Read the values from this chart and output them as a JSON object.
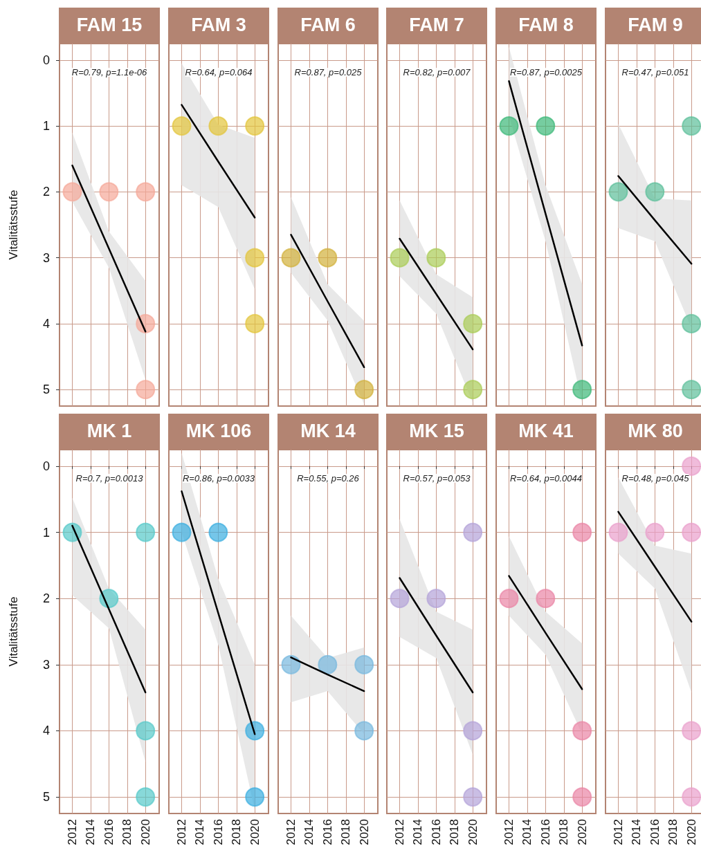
{
  "chart_data": [
    {
      "type": "scatter",
      "title": "FAM 15",
      "ylabel": "Vitalitätsstufe",
      "annotations": [
        "R=0.79, p=1.1e-06"
      ],
      "xlim": [
        2010.6,
        2021.5
      ],
      "xticks": [
        2012,
        2014,
        2016,
        2018,
        2020
      ],
      "ylim": [
        5.25,
        -0.25
      ],
      "yticks": [
        0,
        1,
        2,
        3,
        4,
        5
      ],
      "grid": true,
      "marker": "circle",
      "tick_labels": "y",
      "series": [
        {
          "color": "#f5a898",
          "x": [
            2012,
            2016,
            2020,
            2020,
            2020
          ],
          "values": [
            2,
            2,
            2,
            4,
            5
          ]
        },
        {
          "type": "line",
          "color": "#000000",
          "x": [
            2012,
            2016,
            2020
          ],
          "marker": "none",
          "values": [
            1.6,
            2.86,
            4.12
          ],
          "lower": [
            1.1,
            2.6,
            3.35
          ],
          "upper": [
            2.15,
            3.15,
            4.85
          ]
        }
      ]
    },
    {
      "type": "scatter",
      "title": "FAM 3",
      "annotations": [
        "R=0.64, p=0.064"
      ],
      "xlim": [
        2010.6,
        2021.5
      ],
      "xticks": [
        2012,
        2014,
        2016,
        2018,
        2020
      ],
      "ylim": [
        5.25,
        -0.25
      ],
      "yticks": [
        0,
        1,
        2,
        3,
        4,
        5
      ],
      "grid": true,
      "marker": "circle",
      "tick_labels": false,
      "series": [
        {
          "color": "#e3c53a",
          "x": [
            2012,
            2016,
            2020,
            2020,
            2020
          ],
          "values": [
            1,
            1,
            1,
            3,
            4
          ]
        },
        {
          "type": "line",
          "color": "#000000",
          "x": [
            2012,
            2016,
            2020
          ],
          "marker": "none",
          "values": [
            0.68,
            1.54,
            2.39
          ],
          "lower": [
            0.05,
            0.98,
            1.18
          ],
          "upper": [
            1.9,
            2.23,
            3.48
          ]
        }
      ]
    },
    {
      "type": "scatter",
      "title": "FAM 6",
      "annotations": [
        "R=0.87, p=0.025"
      ],
      "xlim": [
        2010.6,
        2021.5
      ],
      "xticks": [
        2012,
        2014,
        2016,
        2018,
        2020
      ],
      "ylim": [
        5.25,
        -0.25
      ],
      "yticks": [
        0,
        1,
        2,
        3,
        4,
        5
      ],
      "grid": true,
      "marker": "circle",
      "tick_labels": false,
      "series": [
        {
          "color": "#d2b03a",
          "x": [
            2012,
            2016,
            2020
          ],
          "values": [
            3,
            3,
            5
          ]
        },
        {
          "type": "line",
          "color": "#000000",
          "x": [
            2012,
            2016,
            2020
          ],
          "marker": "none",
          "values": [
            2.65,
            3.66,
            4.66
          ],
          "lower": [
            2.08,
            3.4,
            3.96
          ],
          "upper": [
            3.23,
            3.95,
            5.22
          ]
        }
      ]
    },
    {
      "type": "scatter",
      "title": "FAM 7",
      "annotations": [
        "R=0.82, p=0.007"
      ],
      "xlim": [
        2010.6,
        2021.5
      ],
      "xticks": [
        2012,
        2014,
        2016,
        2018,
        2020
      ],
      "ylim": [
        5.25,
        -0.25
      ],
      "yticks": [
        0,
        1,
        2,
        3,
        4,
        5
      ],
      "grid": true,
      "marker": "circle",
      "tick_labels": false,
      "series": [
        {
          "color": "#a9cc55",
          "x": [
            2012,
            2016,
            2020,
            2020
          ],
          "values": [
            3,
            3,
            4,
            5
          ]
        },
        {
          "type": "line",
          "color": "#000000",
          "x": [
            2012,
            2016,
            2020
          ],
          "marker": "none",
          "values": [
            2.71,
            3.55,
            4.39
          ],
          "lower": [
            2.13,
            3.25,
            3.6
          ],
          "upper": [
            3.28,
            3.85,
            5.2
          ]
        }
      ]
    },
    {
      "type": "scatter",
      "title": "FAM 8",
      "annotations": [
        "R=0.87, p=0.0025"
      ],
      "xlim": [
        2010.6,
        2021.5
      ],
      "xticks": [
        2012,
        2014,
        2016,
        2018,
        2020
      ],
      "ylim": [
        5.25,
        -0.25
      ],
      "yticks": [
        0,
        1,
        2,
        3,
        4,
        5
      ],
      "grid": true,
      "marker": "circle",
      "tick_labels": false,
      "series": [
        {
          "color": "#3cb878",
          "x": [
            2012,
            2016,
            2020
          ],
          "values": [
            1,
            1,
            5
          ]
        },
        {
          "type": "line",
          "color": "#000000",
          "x": [
            2012,
            2016,
            2020
          ],
          "marker": "none",
          "values": [
            0.32,
            2.33,
            4.33
          ],
          "lower": [
            -0.2,
            1.9,
            3.4
          ],
          "upper": [
            0.85,
            2.75,
            5.2
          ]
        }
      ]
    },
    {
      "type": "scatter",
      "title": "FAM 9",
      "annotations": [
        "R=0.47, p=0.051"
      ],
      "xlim": [
        2010.6,
        2021.5
      ],
      "xticks": [
        2012,
        2014,
        2016,
        2018,
        2020
      ],
      "ylim": [
        5.25,
        -0.25
      ],
      "yticks": [
        0,
        1,
        2,
        3,
        4,
        5
      ],
      "grid": true,
      "marker": "circle",
      "tick_labels": false,
      "series": [
        {
          "color": "#5cbf9a",
          "x": [
            2012,
            2016,
            2020,
            2020,
            2020
          ],
          "values": [
            2,
            2,
            1,
            4,
            5
          ]
        },
        {
          "type": "line",
          "color": "#000000",
          "x": [
            2012,
            2016,
            2020
          ],
          "marker": "none",
          "values": [
            1.76,
            2.43,
            3.09
          ],
          "lower": [
            0.97,
            2.1,
            2.13
          ],
          "upper": [
            2.55,
            2.75,
            4.07
          ]
        }
      ]
    },
    {
      "type": "scatter",
      "title": "MK 1",
      "ylabel": "Vitalitätsstufe",
      "annotations": [
        "R=0.7, p=0.0013"
      ],
      "xlim": [
        2010.6,
        2021.5
      ],
      "xticks": [
        2012,
        2014,
        2016,
        2018,
        2020
      ],
      "ylim": [
        5.25,
        -0.25
      ],
      "yticks": [
        0,
        1,
        2,
        3,
        4,
        5
      ],
      "grid": true,
      "marker": "circle",
      "series": [
        {
          "color": "#55c9c9",
          "x": [
            2012,
            2016,
            2020,
            2020,
            2020
          ],
          "values": [
            1,
            2,
            1,
            4,
            5
          ]
        },
        {
          "type": "line",
          "color": "#000000",
          "x": [
            2012,
            2016,
            2020
          ],
          "marker": "none",
          "values": [
            0.9,
            2.16,
            3.42
          ],
          "lower": [
            0.48,
            1.85,
            2.47
          ],
          "upper": [
            1.95,
            2.45,
            4.47
          ]
        }
      ]
    },
    {
      "type": "scatter",
      "title": "MK 106",
      "annotations": [
        "R=0.86, p=0.0033"
      ],
      "xlim": [
        2010.6,
        2021.5
      ],
      "xticks": [
        2012,
        2014,
        2016,
        2018,
        2020
      ],
      "ylim": [
        5.25,
        -0.25
      ],
      "yticks": [
        0,
        1,
        2,
        3,
        4,
        5
      ],
      "grid": true,
      "marker": "circle",
      "tick_labels": "x",
      "series": [
        {
          "color": "#3aaee0",
          "x": [
            2012,
            2016,
            2020,
            2020
          ],
          "values": [
            1,
            1,
            4,
            5
          ]
        },
        {
          "type": "line",
          "color": "#000000",
          "x": [
            2012,
            2016,
            2020
          ],
          "marker": "none",
          "values": [
            0.38,
            2.22,
            4.05
          ],
          "lower": [
            -0.2,
            1.7,
            3.0
          ],
          "upper": [
            1.0,
            2.7,
            5.2
          ]
        }
      ]
    },
    {
      "type": "scatter",
      "title": "MK 14",
      "annotations": [
        "R=0.55, p=0.26"
      ],
      "xlim": [
        2010.6,
        2021.5
      ],
      "xticks": [
        2012,
        2014,
        2016,
        2018,
        2020
      ],
      "ylim": [
        5.25,
        -0.25
      ],
      "yticks": [
        0,
        1,
        2,
        3,
        4,
        5
      ],
      "grid": true,
      "marker": "circle",
      "tick_labels": "x",
      "series": [
        {
          "color": "#76b8de",
          "x": [
            2012,
            2016,
            2020,
            2020
          ],
          "values": [
            3,
            3,
            3,
            4
          ]
        },
        {
          "type": "line",
          "color": "#000000",
          "x": [
            2012,
            2016,
            2020
          ],
          "marker": "none",
          "values": [
            2.89,
            3.15,
            3.4
          ],
          "lower": [
            2.26,
            2.9,
            2.74
          ],
          "upper": [
            3.57,
            3.4,
            4.05
          ]
        }
      ]
    },
    {
      "type": "scatter",
      "title": "MK 15",
      "annotations": [
        "R=0.57, p=0.053"
      ],
      "xlim": [
        2010.6,
        2021.5
      ],
      "xticks": [
        2012,
        2014,
        2016,
        2018,
        2020
      ],
      "ylim": [
        5.25,
        -0.25
      ],
      "yticks": [
        0,
        1,
        2,
        3,
        4,
        5
      ],
      "grid": true,
      "marker": "circle",
      "tick_labels": "x",
      "series": [
        {
          "color": "#b3a2d8",
          "x": [
            2012,
            2016,
            2020,
            2020,
            2020
          ],
          "values": [
            2,
            2,
            1,
            4,
            5
          ]
        },
        {
          "type": "line",
          "color": "#000000",
          "x": [
            2012,
            2016,
            2020
          ],
          "marker": "none",
          "values": [
            1.69,
            2.56,
            3.42
          ],
          "lower": [
            0.8,
            2.2,
            2.47
          ],
          "upper": [
            2.58,
            2.9,
            4.36
          ]
        }
      ]
    },
    {
      "type": "scatter",
      "title": "MK 41",
      "annotations": [
        "R=0.64, p=0.0044"
      ],
      "xlim": [
        2010.6,
        2021.5
      ],
      "xticks": [
        2012,
        2014,
        2016,
        2018,
        2020
      ],
      "ylim": [
        5.25,
        -0.25
      ],
      "yticks": [
        0,
        1,
        2,
        3,
        4,
        5
      ],
      "grid": true,
      "marker": "circle",
      "tick_labels": "x",
      "series": [
        {
          "color": "#ea85a5",
          "x": [
            2012,
            2016,
            2020,
            2020,
            2020
          ],
          "values": [
            2,
            2,
            1,
            4,
            5
          ]
        },
        {
          "type": "line",
          "color": "#000000",
          "x": [
            2012,
            2016,
            2020
          ],
          "marker": "none",
          "values": [
            1.66,
            2.52,
            3.37
          ],
          "lower": [
            1.06,
            2.2,
            2.68
          ],
          "upper": [
            2.26,
            2.85,
            4.05
          ]
        }
      ]
    },
    {
      "type": "scatter",
      "title": "MK 80",
      "annotations": [
        "R=0.48, p=0.045"
      ],
      "xlim": [
        2010.6,
        2021.5
      ],
      "xticks": [
        2012,
        2014,
        2016,
        2018,
        2020
      ],
      "ylim": [
        5.25,
        -0.25
      ],
      "yticks": [
        0,
        1,
        2,
        3,
        4,
        5
      ],
      "grid": true,
      "marker": "circle",
      "tick_labels": "x",
      "series": [
        {
          "color": "#eaa0cc",
          "x": [
            2012,
            2016,
            2020,
            2020,
            2020,
            2020
          ],
          "values": [
            1,
            1,
            0,
            1,
            4,
            5
          ]
        },
        {
          "type": "line",
          "color": "#000000",
          "x": [
            2012,
            2016,
            2020
          ],
          "marker": "none",
          "values": [
            0.69,
            1.52,
            2.35
          ],
          "lower": [
            0.17,
            1.2,
            1.32
          ],
          "upper": [
            1.32,
            1.85,
            3.42
          ]
        }
      ]
    }
  ]
}
